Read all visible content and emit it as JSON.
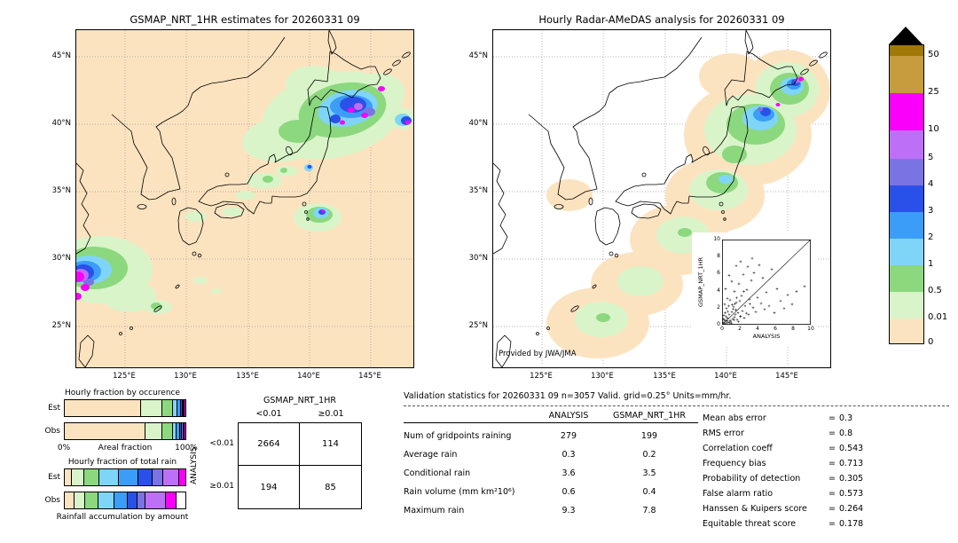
{
  "colorbar": {
    "triangle_color": "#000000",
    "units": "mm/hr",
    "segments": [
      {
        "label": "50",
        "range": ">50",
        "color": "#a07808"
      },
      {
        "label": "25",
        "range": "25-50",
        "color": "#c69c3e"
      },
      {
        "label": "10",
        "range": "10-25",
        "color": "#fa00fa"
      },
      {
        "label": "5",
        "range": "5-10",
        "color": "#be6ff8"
      },
      {
        "label": "4",
        "range": "4-5",
        "color": "#7a73e4"
      },
      {
        "label": "3",
        "range": "3-4",
        "color": "#2a50ea"
      },
      {
        "label": "2",
        "range": "2-3",
        "color": "#3b9df8"
      },
      {
        "label": "1",
        "range": "1-2",
        "color": "#7fd5f8"
      },
      {
        "label": "0.5",
        "range": "0.5-1",
        "color": "#8cd87f"
      },
      {
        "label": "0.01",
        "range": "0.01-0.5",
        "color": "#d9f4c9"
      },
      {
        "label": "0",
        "range": "0-0.01",
        "color": "#fce3c0"
      }
    ]
  },
  "chart_data": [
    {
      "type": "heatmap",
      "title": "GSMAP_NRT_1HR estimates for 20260331 09",
      "x_ticks": [
        "125°E",
        "130°E",
        "135°E",
        "140°E",
        "145°E"
      ],
      "y_ticks": [
        "45°N",
        "40°N",
        "35°N",
        "30°N",
        "25°N"
      ],
      "units": "mm/hr",
      "levels": [
        0,
        0.01,
        0.5,
        1,
        2,
        3,
        4,
        5,
        10,
        25,
        50
      ],
      "description": "Satellite precipitation map over Japan; heavy rain (blue/magenta cores) northeast of Honshu near Hokkaido, a strong cell near 30N 122E, scattered light-green showers over central Japan and south of Tokyo."
    },
    {
      "type": "heatmap",
      "title": "Hourly Radar-AMeDAS analysis for 20260331 09",
      "annotation": "Provided by JWA/JMA",
      "x_ticks": [
        "125°E",
        "130°E",
        "135°E",
        "140°E",
        "145°E"
      ],
      "y_ticks": [
        "45°N",
        "40°N",
        "35°N",
        "30°N",
        "25°N"
      ],
      "units": "mm/hr",
      "levels": [
        0,
        0.01,
        0.5,
        1,
        2,
        3,
        4,
        5,
        10,
        25,
        50
      ],
      "description": "Smoothed radar analysis showing a SW-NE rain band from south of Okinawa to east of Hokkaido with the heaviest rain (blue/purple/magenta) near eastern Hokkaido."
    },
    {
      "type": "scatter",
      "xlabel": "ANALYSIS",
      "ylabel": "GSMAP_NRT_1HR",
      "xlim": [
        0,
        10
      ],
      "ylim": [
        0,
        10
      ],
      "x_ticks": [
        0,
        2,
        4,
        6,
        8,
        10
      ],
      "y_ticks": [
        0,
        2,
        4,
        6,
        8,
        10
      ],
      "diagonal": true,
      "points": [
        [
          0.1,
          0.1
        ],
        [
          0.2,
          0.3
        ],
        [
          0.3,
          0.1
        ],
        [
          0.4,
          0.5
        ],
        [
          0.5,
          0.2
        ],
        [
          0.6,
          0.8
        ],
        [
          0.7,
          0.3
        ],
        [
          0.8,
          1.2
        ],
        [
          0.9,
          0.5
        ],
        [
          1.0,
          0.4
        ],
        [
          1.1,
          1.5
        ],
        [
          1.2,
          0.7
        ],
        [
          1.3,
          2.1
        ],
        [
          1.4,
          0.9
        ],
        [
          1.5,
          1.2
        ],
        [
          1.6,
          2.6
        ],
        [
          1.7,
          0.6
        ],
        [
          1.8,
          1.4
        ],
        [
          2.0,
          2.8
        ],
        [
          2.1,
          1.0
        ],
        [
          2.2,
          3.4
        ],
        [
          2.3,
          1.6
        ],
        [
          2.5,
          0.8
        ],
        [
          2.6,
          2.2
        ],
        [
          2.8,
          4.1
        ],
        [
          3.0,
          1.2
        ],
        [
          3.1,
          3.0
        ],
        [
          3.3,
          5.2
        ],
        [
          3.5,
          2.0
        ],
        [
          3.6,
          6.1
        ],
        [
          3.8,
          1.5
        ],
        [
          4.0,
          3.2
        ],
        [
          4.2,
          7.0
        ],
        [
          4.4,
          2.5
        ],
        [
          4.6,
          5.5
        ],
        [
          4.8,
          1.8
        ],
        [
          5.0,
          3.8
        ],
        [
          5.3,
          2.2
        ],
        [
          5.6,
          6.5
        ],
        [
          5.9,
          1.4
        ],
        [
          6.2,
          4.2
        ],
        [
          6.6,
          2.8
        ],
        [
          7.0,
          1.9
        ],
        [
          7.4,
          3.5
        ],
        [
          7.9,
          2.4
        ],
        [
          8.4,
          3.9
        ],
        [
          9.3,
          4.5
        ],
        [
          3.4,
          7.8
        ],
        [
          2.9,
          6.8
        ],
        [
          2.4,
          5.9
        ],
        [
          1.9,
          4.8
        ],
        [
          1.4,
          3.9
        ],
        [
          0.9,
          2.9
        ],
        [
          0.5,
          1.9
        ],
        [
          0.3,
          2.4
        ],
        [
          0.2,
          1.1
        ],
        [
          0.6,
          3.1
        ],
        [
          1.1,
          5.1
        ],
        [
          1.6,
          6.9
        ],
        [
          2.1,
          7.4
        ],
        [
          0.4,
          4.2
        ],
        [
          0.8,
          5.8
        ],
        [
          0.15,
          0.7
        ],
        [
          0.35,
          1.4
        ],
        [
          0.55,
          0.45
        ],
        [
          0.75,
          2.2
        ],
        [
          1.05,
          0.15
        ],
        [
          1.25,
          1.85
        ],
        [
          1.45,
          2.45
        ],
        [
          1.65,
          3.15
        ],
        [
          1.85,
          0.35
        ],
        [
          2.05,
          0.95
        ],
        [
          0.25,
          0.55
        ],
        [
          0.45,
          0.95
        ],
        [
          0.65,
          1.55
        ],
        [
          0.85,
          0.25
        ],
        [
          1.15,
          2.35
        ],
        [
          1.35,
          0.55
        ],
        [
          1.55,
          1.75
        ],
        [
          2.45,
          3.9
        ],
        [
          2.75,
          1.35
        ],
        [
          3.15,
          2.45
        ]
      ]
    },
    {
      "type": "bar",
      "subtype": "stacked-horizontal",
      "title": "Hourly fraction by occurence",
      "xlabel": "Areal fraction",
      "x_min_label": "0%",
      "x_max_label": "100%",
      "categories": [
        "Est",
        "Obs"
      ],
      "rows": [
        {
          "label": "Est",
          "segments": [
            {
              "color": "#fce3c0",
              "pct": 63
            },
            {
              "color": "#d9f4c9",
              "pct": 18
            },
            {
              "color": "#8cd87f",
              "pct": 9
            },
            {
              "color": "#7fd5f8",
              "pct": 3.5
            },
            {
              "color": "#3b9df8",
              "pct": 2.5
            },
            {
              "color": "#2a50ea",
              "pct": 1.5
            },
            {
              "color": "#7a73e4",
              "pct": 1
            },
            {
              "color": "#be6ff8",
              "pct": 0.7
            },
            {
              "color": "#fa00fa",
              "pct": 0.8
            }
          ]
        },
        {
          "label": "Obs",
          "segments": [
            {
              "color": "#fce3c0",
              "pct": 67
            },
            {
              "color": "#d9f4c9",
              "pct": 14
            },
            {
              "color": "#8cd87f",
              "pct": 8.5
            },
            {
              "color": "#7fd5f8",
              "pct": 3.5
            },
            {
              "color": "#3b9df8",
              "pct": 2.5
            },
            {
              "color": "#2a50ea",
              "pct": 1.8
            },
            {
              "color": "#7a73e4",
              "pct": 1.2
            },
            {
              "color": "#be6ff8",
              "pct": 1
            },
            {
              "color": "#fa00fa",
              "pct": 0.5
            }
          ]
        }
      ]
    },
    {
      "type": "bar",
      "subtype": "stacked-horizontal",
      "title": "Hourly fraction of total rain",
      "caption": "Rainfall accumulation by amount",
      "categories": [
        "Est",
        "Obs"
      ],
      "rows": [
        {
          "label": "Est",
          "segments": [
            {
              "color": "#fce3c0",
              "pct": 6
            },
            {
              "color": "#d9f4c9",
              "pct": 10
            },
            {
              "color": "#8cd87f",
              "pct": 13
            },
            {
              "color": "#7fd5f8",
              "pct": 16
            },
            {
              "color": "#3b9df8",
              "pct": 16
            },
            {
              "color": "#2a50ea",
              "pct": 12
            },
            {
              "color": "#7a73e4",
              "pct": 9
            },
            {
              "color": "#be6ff8",
              "pct": 13
            },
            {
              "color": "#fa00fa",
              "pct": 5
            }
          ]
        },
        {
          "label": "Obs",
          "segments": [
            {
              "color": "#fce3c0",
              "pct": 8
            },
            {
              "color": "#d9f4c9",
              "pct": 9
            },
            {
              "color": "#8cd87f",
              "pct": 11
            },
            {
              "color": "#7fd5f8",
              "pct": 13
            },
            {
              "color": "#3b9df8",
              "pct": 11
            },
            {
              "color": "#2a50ea",
              "pct": 8
            },
            {
              "color": "#7a73e4",
              "pct": 7
            },
            {
              "color": "#be6ff8",
              "pct": 17
            },
            {
              "color": "#fa00fa",
              "pct": 9
            },
            {
              "color": "#ffffff",
              "pct": 7
            }
          ]
        }
      ]
    },
    {
      "type": "table",
      "title": "Contingency table",
      "column_group": "GSMAP_NRT_1HR",
      "row_group": "ANALYSIS",
      "columns": [
        "<0.01",
        "≥0.01"
      ],
      "rows": [
        "<0.01",
        "≥0.01"
      ],
      "values": [
        [
          2664,
          114
        ],
        [
          194,
          85
        ]
      ]
    },
    {
      "type": "table",
      "title": "Validation statistics for 20260331 09  n=3057 Valid. grid=0.25° Units=mm/hr.",
      "columns": [
        "",
        "ANALYSIS",
        "GSMAP_NRT_1HR"
      ],
      "rows": [
        [
          "Num of gridpoints raining",
          "279",
          "199"
        ],
        [
          "Average rain",
          "0.3",
          "0.2"
        ],
        [
          "Conditional rain",
          "3.6",
          "3.5"
        ],
        [
          "Rain volume (mm km²10⁶)",
          "0.6",
          "0.4"
        ],
        [
          "Maximum rain",
          "9.3",
          "7.8"
        ]
      ],
      "scores": [
        {
          "label": "Mean abs error",
          "value": "0.3"
        },
        {
          "label": "RMS error",
          "value": "0.8"
        },
        {
          "label": "Correlation coeff",
          "value": "0.543"
        },
        {
          "label": "Frequency bias",
          "value": "0.713"
        },
        {
          "label": "Probability of detection",
          "value": "0.305"
        },
        {
          "label": "False alarm ratio",
          "value": "0.573"
        },
        {
          "label": "Hanssen & Kuipers score",
          "value": "0.264"
        },
        {
          "label": "Equitable threat score",
          "value": "0.178"
        }
      ]
    }
  ]
}
